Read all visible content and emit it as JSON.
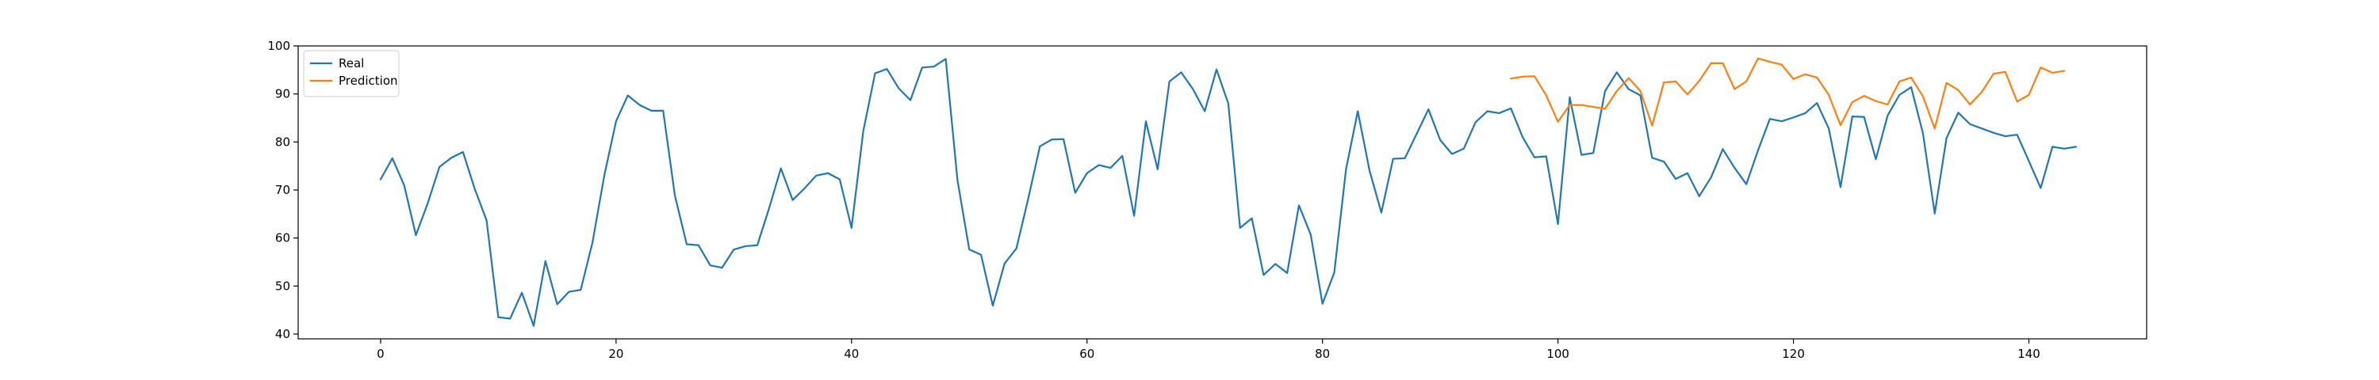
{
  "chart_data": {
    "type": "line",
    "title": "",
    "xlabel": "",
    "ylabel": "",
    "xlim": [
      -7,
      150
    ],
    "ylim": [
      39,
      100
    ],
    "xticks": [
      0,
      20,
      40,
      60,
      80,
      100,
      120,
      140
    ],
    "yticks": [
      40,
      50,
      60,
      70,
      80,
      90,
      100
    ],
    "grid": false,
    "legend": "upper-left",
    "series": [
      {
        "name": "Real",
        "color": "#1f77b4",
        "x_start": 0,
        "values": [
          72.2,
          76.6,
          71.0,
          60.6,
          67.2,
          74.8,
          76.7,
          77.9,
          70.2,
          63.7,
          43.5,
          43.2,
          48.6,
          41.7,
          55.2,
          46.2,
          48.8,
          49.2,
          59.1,
          73.0,
          84.3,
          89.7,
          87.7,
          86.5,
          86.5,
          68.8,
          58.7,
          58.5,
          54.3,
          53.8,
          57.6,
          58.3,
          58.5,
          66.2,
          74.5,
          67.9,
          70.3,
          73.0,
          73.5,
          72.2,
          62.1,
          82.3,
          94.3,
          95.2,
          91.2,
          88.7,
          95.5,
          95.7,
          97.3,
          72.0,
          57.6,
          56.5,
          45.9,
          54.7,
          57.8,
          68.1,
          79.1,
          80.5,
          80.6,
          69.4,
          73.5,
          75.2,
          74.6,
          77.1,
          64.6,
          84.3,
          74.3,
          92.6,
          94.5,
          91.0,
          86.4,
          95.1,
          88.0,
          62.1,
          64.1,
          52.3,
          54.6,
          52.7,
          66.8,
          60.7,
          46.3,
          52.8,
          74.3,
          86.4,
          74.0,
          65.3,
          76.5,
          76.6,
          81.7,
          86.8,
          80.4,
          77.5,
          78.6,
          84.1,
          86.4,
          86.0,
          87.0,
          81.0,
          76.8,
          77.0,
          62.9,
          89.3,
          77.3,
          77.7,
          90.6,
          94.5,
          91.0,
          89.7,
          76.7,
          75.9,
          72.3,
          73.5,
          68.7,
          72.6,
          78.5,
          74.6,
          71.2,
          78.3,
          84.8,
          84.3,
          85.1,
          86.0,
          88.1,
          82.8,
          70.6,
          85.3,
          85.2,
          76.4,
          85.5,
          89.8,
          91.4,
          81.8,
          65.1,
          80.8,
          86.1,
          83.7,
          82.8,
          81.9,
          81.2,
          81.5,
          76.0,
          70.4,
          79.0,
          78.6,
          79.0
        ]
      },
      {
        "name": "Prediction",
        "color": "#ff7f0e",
        "x_start": 96,
        "values": [
          93.2,
          93.6,
          93.7,
          89.7,
          84.2,
          87.7,
          87.7,
          87.3,
          86.9,
          90.6,
          93.3,
          90.6,
          83.4,
          92.4,
          92.6,
          89.9,
          92.7,
          96.4,
          96.4,
          91.0,
          92.6,
          97.4,
          96.7,
          96.1,
          93.1,
          94.1,
          93.4,
          89.8,
          83.5,
          88.3,
          89.6,
          88.5,
          87.8,
          92.6,
          93.4,
          89.5,
          82.8,
          92.3,
          90.8,
          87.8,
          90.4,
          94.2,
          94.6,
          88.4,
          89.8,
          95.5,
          94.4,
          94.8
        ]
      }
    ]
  }
}
